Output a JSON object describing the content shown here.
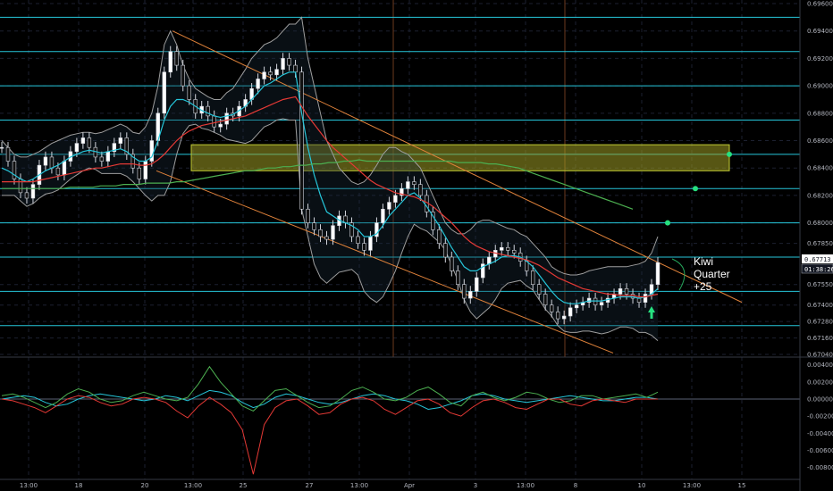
{
  "chart_data": [
    {
      "type": "line",
      "subtype": "candlestick",
      "title": "",
      "ylim": [
        0.6704,
        0.696
      ],
      "y_ticks": [
        "0.69600",
        "0.69400",
        "0.69200",
        "0.69000",
        "0.68800",
        "0.68600",
        "0.68400",
        "0.68200",
        "0.68000",
        "0.67850",
        "0.67550",
        "0.67400",
        "0.67280",
        "0.67160",
        "0.67040"
      ],
      "x_ticks": [
        "13:00",
        "18",
        "20",
        "13:00",
        "25",
        "27",
        "13:00",
        "Apr",
        "3",
        "13:00",
        "8",
        "10",
        "13:00",
        "15"
      ],
      "current_price": "0.67713",
      "countdown": "01:38:26",
      "annotation": "Kiwi\nQuarter\n+25",
      "horizontal_levels": [
        0.695,
        0.6925,
        0.69,
        0.6875,
        0.685,
        0.6825,
        0.68,
        0.6775,
        0.675,
        0.6725
      ],
      "zone": {
        "low": 0.6838,
        "high": 0.6857
      },
      "targets": [
        0.685,
        0.6825,
        0.68
      ],
      "close_series": [
        0.6855,
        0.6845,
        0.6832,
        0.6822,
        0.6818,
        0.6828,
        0.6842,
        0.6848,
        0.684,
        0.6835,
        0.6845,
        0.6852,
        0.6858,
        0.6862,
        0.6855,
        0.6848,
        0.6845,
        0.6852,
        0.6858,
        0.6862,
        0.685,
        0.684,
        0.6832,
        0.6845,
        0.686,
        0.688,
        0.691,
        0.6925,
        0.6915,
        0.69,
        0.689,
        0.688,
        0.6885,
        0.6878,
        0.687,
        0.6872,
        0.688,
        0.6878,
        0.6885,
        0.689,
        0.6898,
        0.6905,
        0.691,
        0.6908,
        0.6912,
        0.692,
        0.6915,
        0.691,
        0.681,
        0.68,
        0.6795,
        0.679,
        0.6788,
        0.6798,
        0.6805,
        0.68,
        0.679,
        0.6785,
        0.678,
        0.679,
        0.68,
        0.681,
        0.6815,
        0.682,
        0.6825,
        0.683,
        0.6828,
        0.682,
        0.6808,
        0.6795,
        0.6785,
        0.6775,
        0.6765,
        0.6755,
        0.6745,
        0.675,
        0.676,
        0.677,
        0.6775,
        0.678,
        0.6782,
        0.678,
        0.6778,
        0.6772,
        0.6765,
        0.6755,
        0.6748,
        0.674,
        0.6735,
        0.673,
        0.6732,
        0.6738,
        0.674,
        0.6742,
        0.6745,
        0.674,
        0.6742,
        0.6745,
        0.6748,
        0.6752,
        0.6748,
        0.6745,
        0.6742,
        0.6748,
        0.6755,
        0.6771
      ],
      "series": [
        {
          "color": "#26c6da",
          "values": [
            0.684,
            0.6838,
            0.6835,
            0.6832,
            0.683,
            0.6832,
            0.6835,
            0.6838,
            0.684,
            0.6842,
            0.6845,
            0.6848,
            0.685,
            0.6852,
            0.6853,
            0.6852,
            0.6851,
            0.6852,
            0.6853,
            0.6854,
            0.6852,
            0.6848,
            0.6845,
            0.6845,
            0.6848,
            0.686,
            0.6875,
            0.6885,
            0.689,
            0.689,
            0.6888,
            0.6885,
            0.6882,
            0.688,
            0.6878,
            0.6877,
            0.6878,
            0.6879,
            0.6882,
            0.6885,
            0.689,
            0.6895,
            0.69,
            0.6902,
            0.6905,
            0.6908,
            0.691,
            0.691,
            0.688,
            0.6855,
            0.6835,
            0.682,
            0.6808,
            0.6805,
            0.6802,
            0.68,
            0.6798,
            0.6795,
            0.679,
            0.679,
            0.6792,
            0.6798,
            0.6805,
            0.681,
            0.6815,
            0.682,
            0.6822,
            0.6818,
            0.6812,
            0.6805,
            0.6798,
            0.679,
            0.6782,
            0.6775,
            0.6768,
            0.6765,
            0.6765,
            0.6768,
            0.677,
            0.6772,
            0.6775,
            0.6776,
            0.6776,
            0.6775,
            0.6772,
            0.6768,
            0.6762,
            0.6756,
            0.675,
            0.6745,
            0.6742,
            0.6741,
            0.6741,
            0.6742,
            0.6743,
            0.6743,
            0.6743,
            0.6744,
            0.6745,
            0.6746,
            0.6746,
            0.6746,
            0.6745,
            0.6746,
            0.6748,
            0.6752
          ]
        },
        {
          "color": "#e53935",
          "values": [
            0.683,
            0.683,
            0.683,
            0.683,
            0.683,
            0.683,
            0.6831,
            0.6832,
            0.6833,
            0.6834,
            0.6835,
            0.6836,
            0.6837,
            0.6838,
            0.6839,
            0.684,
            0.684,
            0.6841,
            0.6842,
            0.6843,
            0.6843,
            0.6843,
            0.6842,
            0.6842,
            0.6843,
            0.6846,
            0.685,
            0.6855,
            0.686,
            0.6864,
            0.6867,
            0.6869,
            0.6871,
            0.6872,
            0.6873,
            0.6874,
            0.6875,
            0.6876,
            0.6877,
            0.6878,
            0.688,
            0.6882,
            0.6884,
            0.6886,
            0.6888,
            0.689,
            0.6891,
            0.6892,
            0.6885,
            0.6878,
            0.6872,
            0.6866,
            0.686,
            0.6855,
            0.6851,
            0.6847,
            0.6843,
            0.6839,
            0.6835,
            0.6831,
            0.6828,
            0.6826,
            0.6824,
            0.6822,
            0.6821,
            0.682,
            0.6819,
            0.6817,
            0.6815,
            0.6812,
            0.6808,
            0.6804,
            0.68,
            0.6795,
            0.679,
            0.6786,
            0.6783,
            0.6781,
            0.6779,
            0.6778,
            0.6777,
            0.6776,
            0.6775,
            0.6774,
            0.6773,
            0.6771,
            0.6769,
            0.6766,
            0.6763,
            0.676,
            0.6758,
            0.6756,
            0.6754,
            0.6752,
            0.6751,
            0.675,
            0.6749,
            0.6748,
            0.6748,
            0.6747,
            0.6747,
            0.6747,
            0.6746,
            0.6746,
            0.6747,
            0.6748
          ]
        },
        {
          "color": "#4caf50",
          "values": [
            0.6825,
            0.6825,
            0.6825,
            0.6825,
            0.6825,
            0.6825,
            0.6825,
            0.6825,
            0.6825,
            0.6826,
            0.6826,
            0.6826,
            0.6826,
            0.6827,
            0.6827,
            0.6827,
            0.6828,
            0.6828,
            0.6828,
            0.6829,
            0.6829,
            0.6829,
            0.6829,
            0.683,
            0.683,
            0.6831,
            0.6832,
            0.6833,
            0.6834,
            0.6835,
            0.6836,
            0.6837,
            0.6838,
            0.6838,
            0.6839,
            0.684,
            0.684,
            0.6841,
            0.6841,
            0.6842,
            0.6842,
            0.6843,
            0.6843,
            0.6844,
            0.6844,
            0.6845,
            0.6845,
            0.6846,
            0.6845,
            0.6845,
            0.6845,
            0.6845,
            0.6845,
            0.6845,
            0.6845,
            0.6845,
            0.6845,
            0.6845,
            0.6845,
            0.6845,
            0.6844,
            0.6844,
            0.6844,
            0.6844,
            0.6843,
            0.6843,
            0.6842,
            0.6841,
            0.684,
            0.6838,
            0.6836,
            0.6834,
            0.6832,
            0.683,
            0.6828,
            0.6826,
            0.6824,
            0.6822,
            0.682,
            0.6818,
            0.6816,
            0.6814,
            0.6812,
            0.681
          ]
        },
        {
          "color": "#9e9e9e",
          "values": [
            0.686,
            0.6855,
            0.685,
            0.6848,
            0.6848,
            0.685,
            0.6852,
            0.6855,
            0.6858,
            0.686,
            0.6862,
            0.6864,
            0.6865,
            0.6866,
            0.6866,
            0.6865,
            0.6866,
            0.6868,
            0.687,
            0.6872,
            0.687,
            0.6866,
            0.6865,
            0.687,
            0.688,
            0.69,
            0.693,
            0.694,
            0.693,
            0.6915,
            0.6905,
            0.6898,
            0.6895,
            0.6892,
            0.689,
            0.689,
            0.6895,
            0.6898,
            0.6905,
            0.6912,
            0.692,
            0.6925,
            0.693,
            0.6932,
            0.6935,
            0.694,
            0.6945,
            0.6945,
            0.695,
            0.692,
            0.69,
            0.688,
            0.686,
            0.685,
            0.684,
            0.6835,
            0.683,
            0.6828,
            0.683,
            0.6835,
            0.6842,
            0.685,
            0.6855,
            0.6855,
            0.6852,
            0.685,
            0.6845,
            0.684,
            0.683,
            0.682,
            0.681,
            0.68,
            0.6795,
            0.6792,
            0.6792,
            0.6795,
            0.68,
            0.6802,
            0.6802,
            0.68,
            0.6798,
            0.6796,
            0.6795,
            0.6792,
            0.679,
            0.6785,
            0.678,
            0.6775,
            0.6768,
            0.6765,
            0.6763,
            0.6762,
            0.6762,
            0.6763,
            0.6765,
            0.6766,
            0.6767,
            0.6768,
            0.6768,
            0.6768,
            0.6768,
            0.6769,
            0.677,
            0.6772,
            0.6778,
            0.679
          ]
        },
        {
          "color": "#9e9e9e",
          "values": [
            0.682,
            0.682,
            0.682,
            0.6816,
            0.6812,
            0.6814,
            0.6818,
            0.6821,
            0.6822,
            0.6824,
            0.6828,
            0.6832,
            0.6835,
            0.6838,
            0.684,
            0.6839,
            0.6836,
            0.6836,
            0.6836,
            0.6836,
            0.6834,
            0.683,
            0.6825,
            0.682,
            0.6816,
            0.682,
            0.682,
            0.683,
            0.685,
            0.6865,
            0.6871,
            0.6872,
            0.6869,
            0.6868,
            0.6866,
            0.6864,
            0.6861,
            0.686,
            0.6859,
            0.6858,
            0.686,
            0.6865,
            0.687,
            0.6872,
            0.6875,
            0.6876,
            0.6875,
            0.6875,
            0.681,
            0.679,
            0.677,
            0.676,
            0.6756,
            0.676,
            0.6764,
            0.6765,
            0.6766,
            0.6762,
            0.675,
            0.6745,
            0.6742,
            0.6746,
            0.6755,
            0.6765,
            0.6778,
            0.679,
            0.6799,
            0.6796,
            0.6794,
            0.679,
            0.6786,
            0.678,
            0.6769,
            0.6758,
            0.6744,
            0.6735,
            0.673,
            0.6734,
            0.6738,
            0.6744,
            0.6752,
            0.6756,
            0.6757,
            0.6758,
            0.6754,
            0.6751,
            0.6744,
            0.6737,
            0.6732,
            0.6725,
            0.6721,
            0.672,
            0.672,
            0.6721,
            0.6721,
            0.672,
            0.6719,
            0.672,
            0.6722,
            0.6724,
            0.6724,
            0.6723,
            0.672,
            0.672,
            0.6718,
            0.6714
          ]
        }
      ],
      "channel": {
        "upper": [
          0.694,
          0.677
        ],
        "lower": [
          0.6838,
          0.6705
        ]
      }
    },
    {
      "type": "line",
      "title": "",
      "ylim": [
        -0.0092,
        0.0046
      ],
      "y_ticks": [
        "0.00400",
        "0.00200",
        "0.00000",
        "-0.00200",
        "-0.00400",
        "-0.00600",
        "-0.00800"
      ],
      "series": [
        {
          "color": "#26c6da",
          "values": [
            0.0,
            0.0002,
            0.0004,
            0.0002,
            -0.0004,
            -0.0008,
            -0.0006,
            0.0,
            0.0004,
            0.0006,
            0.0004,
            0.0002,
            0.0,
            -0.0002,
            0.0,
            0.0004,
            0.0002,
            -0.0002,
            0.0004,
            0.001,
            0.0008,
            0.0004,
            -0.0004,
            -0.001,
            -0.0006,
            0.0002,
            0.0006,
            0.0004,
            0.0,
            -0.0004,
            -0.0006,
            -0.0004,
            0.0,
            0.0004,
            0.0006,
            0.0004,
            0.0,
            -0.0002,
            -0.0006,
            -0.0012,
            -0.001,
            -0.0006,
            -0.0002,
            0.0004,
            0.0006,
            0.0004,
            0.0,
            -0.0002,
            -0.0004,
            -0.0002,
            0.0,
            0.0002,
            0.0004,
            0.0002,
            0.0,
            -0.0002,
            -0.0002,
            0.0,
            0.0002,
            0.0002,
            0.0
          ]
        },
        {
          "color": "#4caf50",
          "values": [
            0.0004,
            0.0006,
            0.0002,
            -0.0004,
            -0.001,
            -0.0004,
            0.0006,
            0.0012,
            0.0008,
            0.0,
            -0.0004,
            -0.0002,
            0.0004,
            0.0008,
            0.0004,
            0.0,
            -0.0002,
            0.0002,
            0.0018,
            0.0038,
            0.002,
            0.0006,
            -0.0008,
            -0.0014,
            -0.0002,
            0.001,
            0.0012,
            0.0004,
            -0.0004,
            -0.001,
            -0.0008,
            0.0,
            0.001,
            0.0014,
            0.0008,
            0.0,
            -0.0002,
            0.0002,
            0.001,
            0.0014,
            0.0006,
            -0.0004,
            -0.0008,
            0.0004,
            0.0008,
            0.0002,
            -0.0002,
            0.0002,
            0.0008,
            0.0006,
            0.0,
            -0.0004,
            -0.0002,
            0.0004,
            0.0004,
            0.0,
            0.0002,
            0.0004,
            0.0006,
            0.0002,
            0.0008
          ]
        },
        {
          "color": "#e53935",
          "values": [
            0.0,
            -0.0002,
            -0.0006,
            -0.001,
            -0.0016,
            -0.0008,
            0.0,
            0.0004,
            0.0002,
            -0.0004,
            -0.0008,
            -0.0006,
            0.0,
            0.0002,
            0.0,
            -0.0004,
            -0.0014,
            -0.0022,
            -0.0008,
            0.0002,
            -0.0006,
            -0.0016,
            -0.0036,
            -0.0088,
            -0.003,
            -0.001,
            -0.0002,
            0.0,
            -0.0008,
            -0.0018,
            -0.0016,
            -0.0006,
            0.0,
            0.0002,
            -0.0002,
            -0.0012,
            -0.0018,
            -0.001,
            -0.0002,
            0.0,
            -0.0006,
            -0.0016,
            -0.002,
            -0.001,
            -0.0002,
            0.0,
            -0.0004,
            -0.001,
            -0.0012,
            -0.0006,
            0.0,
            0.0,
            -0.0006,
            -0.0008,
            -0.0002,
            0.0,
            -0.0002,
            -0.0004,
            0.0,
            0.0,
            0.0
          ]
        }
      ]
    }
  ]
}
